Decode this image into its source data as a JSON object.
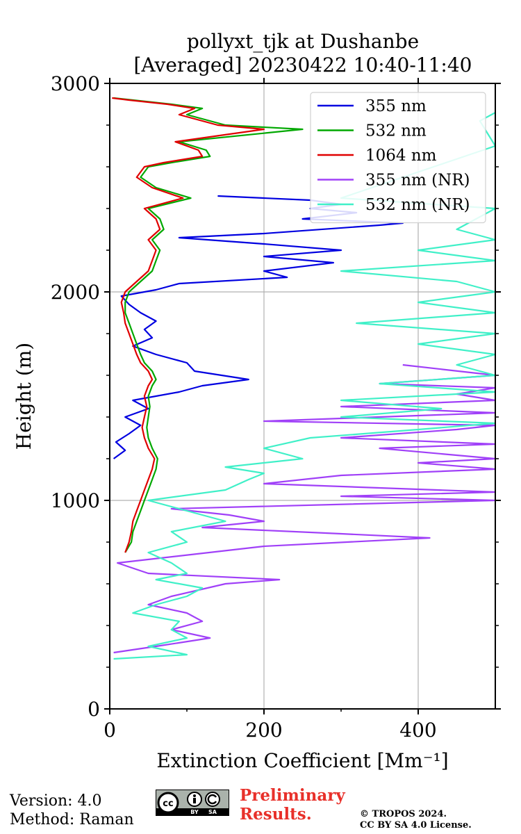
{
  "header": {
    "title_line1": "pollyxt_tjk at Dushanbe",
    "title_line2": "[Averaged] 20230422 10:40-11:40"
  },
  "footer": {
    "version": "Version: 4.0",
    "method": "Method: Raman",
    "prelim_line1": "Preliminary",
    "prelim_line2": "Results.",
    "copyright_line1": "© TROPOS 2024.",
    "copyright_line2": "CC BY SA 4.0 License.",
    "license_badge_text": "cc BY SA"
  },
  "chart_data": {
    "type": "line",
    "orientation": "profile",
    "title": "pollyxt_tjk at Dushanbe\n[Averaged] 20230422 10:40-11:40",
    "xlabel": "Extinction Coefficient [Mm⁻¹]",
    "ylabel": "Height (m)",
    "xlim": [
      0,
      500
    ],
    "ylim": [
      0,
      3000
    ],
    "xticks": [
      0,
      200,
      400
    ],
    "yticks": [
      0,
      1000,
      2000,
      3000
    ],
    "grid": "vertical lines at x ticks, horizontal at y ticks",
    "legend_position": "top-right",
    "series": [
      {
        "name": "355 nm",
        "color": "#0000e0",
        "points": [
          [
            5,
            1200
          ],
          [
            20,
            1240
          ],
          [
            8,
            1280
          ],
          [
            25,
            1320
          ],
          [
            40,
            1360
          ],
          [
            20,
            1400
          ],
          [
            50,
            1440
          ],
          [
            30,
            1480
          ],
          [
            90,
            1520
          ],
          [
            120,
            1550
          ],
          [
            180,
            1580
          ],
          [
            110,
            1620
          ],
          [
            100,
            1660
          ],
          [
            60,
            1700
          ],
          [
            30,
            1740
          ],
          [
            55,
            1780
          ],
          [
            45,
            1820
          ],
          [
            60,
            1860
          ],
          [
            40,
            1900
          ],
          [
            25,
            1940
          ],
          [
            15,
            1980
          ],
          [
            60,
            2010
          ],
          [
            90,
            2040
          ],
          [
            230,
            2070
          ],
          [
            200,
            2100
          ],
          [
            290,
            2140
          ],
          [
            200,
            2170
          ],
          [
            300,
            2200
          ],
          [
            200,
            2230
          ],
          [
            90,
            2260
          ],
          [
            200,
            2280
          ],
          [
            350,
            2320
          ],
          [
            380,
            2330
          ],
          [
            250,
            2350
          ],
          [
            320,
            2380
          ],
          [
            260,
            2400
          ],
          [
            300,
            2420
          ],
          [
            260,
            2440
          ],
          [
            200,
            2450
          ],
          [
            140,
            2460
          ]
        ]
      },
      {
        "name": "532 nm",
        "color": "#00a800",
        "points": [
          [
            20,
            750
          ],
          [
            28,
            800
          ],
          [
            30,
            850
          ],
          [
            35,
            900
          ],
          [
            40,
            950
          ],
          [
            45,
            1000
          ],
          [
            50,
            1050
          ],
          [
            55,
            1100
          ],
          [
            60,
            1150
          ],
          [
            62,
            1200
          ],
          [
            55,
            1250
          ],
          [
            50,
            1300
          ],
          [
            48,
            1350
          ],
          [
            50,
            1400
          ],
          [
            52,
            1450
          ],
          [
            50,
            1500
          ],
          [
            55,
            1550
          ],
          [
            60,
            1580
          ],
          [
            55,
            1620
          ],
          [
            45,
            1660
          ],
          [
            40,
            1700
          ],
          [
            35,
            1750
          ],
          [
            30,
            1800
          ],
          [
            25,
            1850
          ],
          [
            20,
            1900
          ],
          [
            20,
            1950
          ],
          [
            25,
            2000
          ],
          [
            40,
            2050
          ],
          [
            55,
            2100
          ],
          [
            60,
            2150
          ],
          [
            65,
            2200
          ],
          [
            55,
            2250
          ],
          [
            70,
            2300
          ],
          [
            65,
            2350
          ],
          [
            50,
            2400
          ],
          [
            105,
            2450
          ],
          [
            60,
            2500
          ],
          [
            40,
            2550
          ],
          [
            50,
            2600
          ],
          [
            80,
            2620
          ],
          [
            130,
            2650
          ],
          [
            125,
            2680
          ],
          [
            90,
            2720
          ],
          [
            250,
            2780
          ],
          [
            150,
            2800
          ],
          [
            100,
            2850
          ],
          [
            120,
            2880
          ],
          [
            80,
            2900
          ],
          [
            30,
            2920
          ],
          [
            5,
            2930
          ]
        ]
      },
      {
        "name": "1064 nm",
        "color": "#e00000",
        "points": [
          [
            20,
            750
          ],
          [
            25,
            800
          ],
          [
            28,
            850
          ],
          [
            30,
            900
          ],
          [
            35,
            950
          ],
          [
            40,
            1000
          ],
          [
            45,
            1050
          ],
          [
            50,
            1100
          ],
          [
            55,
            1150
          ],
          [
            58,
            1200
          ],
          [
            50,
            1250
          ],
          [
            45,
            1300
          ],
          [
            42,
            1350
          ],
          [
            45,
            1400
          ],
          [
            48,
            1450
          ],
          [
            45,
            1500
          ],
          [
            50,
            1550
          ],
          [
            55,
            1580
          ],
          [
            50,
            1620
          ],
          [
            40,
            1660
          ],
          [
            35,
            1700
          ],
          [
            30,
            1750
          ],
          [
            25,
            1800
          ],
          [
            20,
            1850
          ],
          [
            18,
            1900
          ],
          [
            15,
            1950
          ],
          [
            20,
            2000
          ],
          [
            35,
            2050
          ],
          [
            50,
            2100
          ],
          [
            55,
            2150
          ],
          [
            60,
            2200
          ],
          [
            50,
            2250
          ],
          [
            65,
            2300
          ],
          [
            60,
            2350
          ],
          [
            45,
            2400
          ],
          [
            95,
            2450
          ],
          [
            55,
            2500
          ],
          [
            35,
            2550
          ],
          [
            45,
            2600
          ],
          [
            70,
            2620
          ],
          [
            120,
            2650
          ],
          [
            115,
            2680
          ],
          [
            85,
            2720
          ],
          [
            200,
            2780
          ],
          [
            140,
            2800
          ],
          [
            90,
            2850
          ],
          [
            110,
            2880
          ],
          [
            75,
            2900
          ],
          [
            25,
            2920
          ],
          [
            3,
            2930
          ]
        ]
      },
      {
        "name": "355 nm (NR)",
        "color": "#a040f8",
        "points": [
          [
            5,
            270
          ],
          [
            60,
            300
          ],
          [
            130,
            340
          ],
          [
            80,
            380
          ],
          [
            120,
            420
          ],
          [
            100,
            460
          ],
          [
            50,
            500
          ],
          [
            80,
            540
          ],
          [
            150,
            600
          ],
          [
            220,
            620
          ],
          [
            50,
            650
          ],
          [
            10,
            700
          ],
          [
            200,
            780
          ],
          [
            415,
            820
          ],
          [
            300,
            840
          ],
          [
            120,
            870
          ],
          [
            200,
            900
          ],
          [
            155,
            930
          ],
          [
            80,
            960
          ],
          [
            500,
            1000
          ],
          [
            300,
            1020
          ],
          [
            500,
            1040
          ],
          [
            200,
            1080
          ],
          [
            300,
            1120
          ],
          [
            500,
            1150
          ],
          [
            400,
            1180
          ],
          [
            500,
            1200
          ],
          [
            350,
            1250
          ],
          [
            500,
            1270
          ],
          [
            300,
            1300
          ],
          [
            450,
            1340
          ],
          [
            500,
            1360
          ],
          [
            200,
            1380
          ],
          [
            500,
            1420
          ],
          [
            300,
            1450
          ],
          [
            500,
            1480
          ],
          [
            450,
            1510
          ],
          [
            500,
            1540
          ],
          [
            350,
            1560
          ],
          [
            500,
            1600
          ],
          [
            380,
            1650
          ]
        ]
      },
      {
        "name": "532 nm (NR)",
        "color": "#40f0c8",
        "points": [
          [
            5,
            240
          ],
          [
            100,
            260
          ],
          [
            50,
            300
          ],
          [
            100,
            340
          ],
          [
            80,
            380
          ],
          [
            90,
            420
          ],
          [
            30,
            460
          ],
          [
            60,
            500
          ],
          [
            100,
            540
          ],
          [
            120,
            580
          ],
          [
            60,
            620
          ],
          [
            100,
            650
          ],
          [
            80,
            700
          ],
          [
            50,
            750
          ],
          [
            100,
            800
          ],
          [
            80,
            850
          ],
          [
            150,
            900
          ],
          [
            100,
            950
          ],
          [
            50,
            1000
          ],
          [
            150,
            1050
          ],
          [
            180,
            1100
          ],
          [
            200,
            1130
          ],
          [
            150,
            1160
          ],
          [
            250,
            1200
          ],
          [
            200,
            1250
          ],
          [
            260,
            1300
          ],
          [
            400,
            1340
          ],
          [
            500,
            1370
          ],
          [
            300,
            1400
          ],
          [
            430,
            1440
          ],
          [
            300,
            1480
          ],
          [
            500,
            1520
          ],
          [
            350,
            1560
          ],
          [
            500,
            1600
          ],
          [
            450,
            1650
          ],
          [
            500,
            1700
          ],
          [
            400,
            1750
          ],
          [
            500,
            1800
          ],
          [
            320,
            1850
          ],
          [
            500,
            1900
          ],
          [
            400,
            1950
          ],
          [
            500,
            2000
          ],
          [
            450,
            2050
          ],
          [
            300,
            2100
          ],
          [
            500,
            2150
          ],
          [
            400,
            2200
          ],
          [
            500,
            2250
          ],
          [
            450,
            2300
          ],
          [
            500,
            2400
          ],
          [
            300,
            2450
          ],
          [
            500,
            2700
          ],
          [
            480,
            2820
          ],
          [
            500,
            2860
          ]
        ]
      }
    ]
  }
}
